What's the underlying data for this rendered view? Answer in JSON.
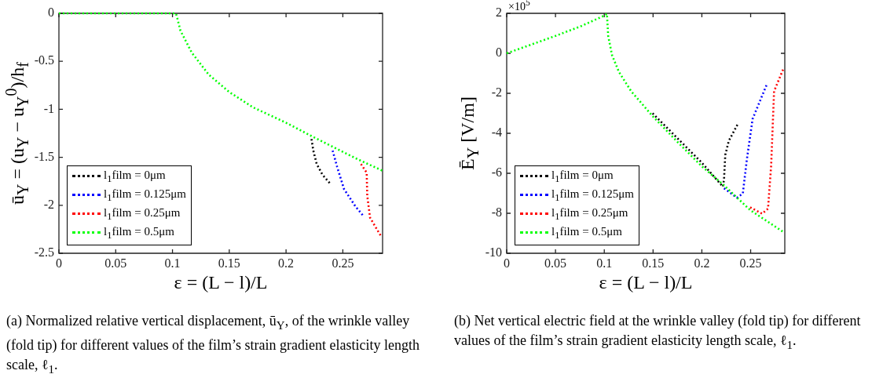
{
  "chart_data": [
    {
      "type": "line",
      "xlabel": "ε = (L − l)/L",
      "ylabel": "ū$_{Y}$ = (u$_{Y}$ − u$_{Y}$$^{0}$)/h$_{f}$",
      "xlim": [
        0,
        0.285
      ],
      "xticks": [
        0,
        0.05,
        0.1,
        0.15,
        0.2,
        0.25
      ],
      "ylim": [
        -2.5,
        0
      ],
      "yticks": [
        -2.5,
        -2,
        -1.5,
        -1,
        -0.5,
        0
      ],
      "legend": "bottom left",
      "line_style": "dotted",
      "annotations": [
        "(a) Normalized relative vertical displacement, ū$_{Y}$, of the wrinkle valley (fold tip) for different values of the film’s strain gradient elasticity length scale, ℓ$_{1}$."
      ],
      "series": [
        {
          "name": "l$_{1}$film = 0μm",
          "color": "#000000",
          "x": [
            0.2224,
            0.224,
            0.227,
            0.232,
            0.2385
          ],
          "values": [
            -1.31,
            -1.43,
            -1.57,
            -1.68,
            -1.77
          ]
        },
        {
          "name": "l$_{1}$film = 0.125μm",
          "color": "#0000ff",
          "x": [
            0.241,
            0.245,
            0.251,
            0.261,
            0.268
          ],
          "values": [
            -1.43,
            -1.6,
            -1.83,
            -2.01,
            -2.11
          ]
        },
        {
          "name": "l$_{1}$film = 0.25μm",
          "color": "#ff0000",
          "x": [
            0.266,
            0.271,
            0.2715,
            0.274,
            0.284
          ],
          "values": [
            -1.57,
            -1.66,
            -1.9,
            -2.13,
            -2.33
          ]
        },
        {
          "name": "l$_{1}$film = 0.5μm",
          "color": "#00ff00",
          "x": [
            0,
            0.05,
            0.1,
            0.103,
            0.104,
            0.107,
            0.117,
            0.132,
            0.15,
            0.171,
            0.2,
            0.221,
            0.241,
            0.263,
            0.285
          ],
          "values": [
            0,
            0,
            0,
            0,
            -0.04,
            -0.18,
            -0.41,
            -0.64,
            -0.82,
            -0.98,
            -1.14,
            -1.27,
            -1.39,
            -1.52,
            -1.64
          ]
        }
      ]
    },
    {
      "type": "line",
      "xlabel": "ε = (L − l)/L",
      "ylabel": "Ē$_{Y}$  [V/m]",
      "xlim": [
        0,
        0.285
      ],
      "xticks": [
        0,
        0.05,
        0.1,
        0.15,
        0.2,
        0.25
      ],
      "ylim": [
        -10,
        2
      ],
      "yticks": [
        -10,
        -8,
        -6,
        -4,
        -2,
        0,
        2
      ],
      "legend": "bottom left",
      "line_style": "dotted",
      "annotations": [
        "×10$^{5}$",
        "(b) Net vertical electric field at the wrinkle valley (fold tip) for different values of the film’s strain gradient elasticity length scale, ℓ$_{1}$."
      ],
      "series": [
        {
          "name": "l$_{1}$film = 0μm",
          "color": "#000000",
          "x": [
            0.1495,
            0.174,
            0.1995,
            0.2215,
            0.2227,
            0.224,
            0.2276,
            0.2373
          ],
          "values": [
            -3.0,
            -4.2,
            -5.45,
            -6.67,
            -6.32,
            -5.08,
            -4.38,
            -3.49
          ]
        },
        {
          "name": "l$_{1}$film = 0.125μm",
          "color": "#0000ff",
          "x": [
            0.2227,
            0.236,
            0.242,
            0.246,
            0.252,
            0.2666
          ],
          "values": [
            -6.75,
            -7.22,
            -7.01,
            -5.35,
            -3.28,
            -1.55
          ]
        },
        {
          "name": "l$_{1}$film = 0.25μm",
          "color": "#ff0000",
          "x": [
            0.2495,
            0.2617,
            0.2678,
            0.271,
            0.274,
            0.284
          ],
          "values": [
            -7.7,
            -8.02,
            -7.77,
            -5.63,
            -1.9,
            -0.72
          ]
        },
        {
          "name": "l$_{1}$film = 0.5μm",
          "color": "#00ff00",
          "x": [
            0,
            0.05,
            0.0763,
            0.1007,
            0.1027,
            0.104,
            0.108,
            0.115,
            0.1276,
            0.1495,
            0.174,
            0.1995,
            0.2227,
            0.2495,
            0.284
          ],
          "values": [
            0,
            0.87,
            1.36,
            1.9,
            1.98,
            0.87,
            -0.1,
            -0.93,
            -1.9,
            -3.14,
            -4.38,
            -5.63,
            -6.6,
            -7.84,
            -8.95
          ]
        }
      ]
    }
  ]
}
